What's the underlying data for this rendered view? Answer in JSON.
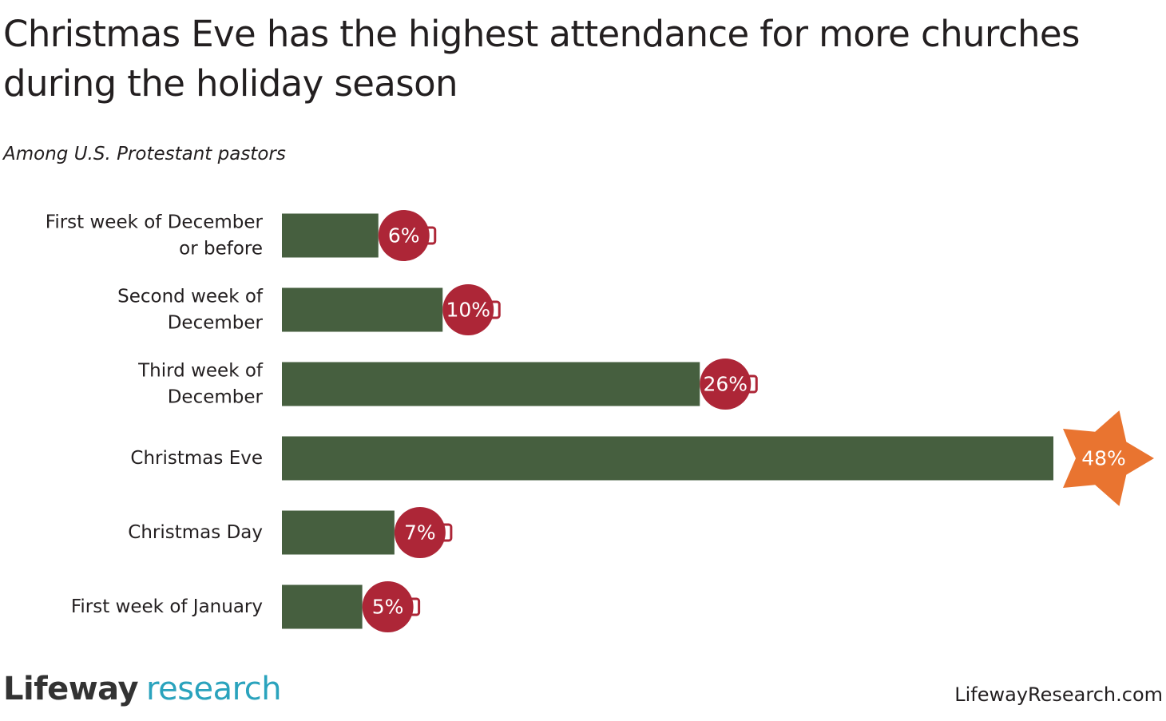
{
  "title": "Christmas Eve has the highest attendance for more churches during the holiday season",
  "subtitle": "Among U.S. Protestant pastors",
  "logo": {
    "main": "Lifeway",
    "sub": "research"
  },
  "footer_url": "LifewayResearch.com",
  "colors": {
    "bar": "#465f3f",
    "ornament": "#ad2637",
    "highlight_star": "#e97430",
    "text": "#231f20"
  },
  "chart_data": {
    "type": "bar",
    "orientation": "horizontal",
    "categories": [
      [
        "First week of December",
        "or before"
      ],
      [
        "Second week of",
        "December"
      ],
      [
        "Third week of",
        "December"
      ],
      [
        "Christmas Eve"
      ],
      [
        "Christmas Day"
      ],
      [
        "First week of January"
      ]
    ],
    "values": [
      6,
      10,
      26,
      48,
      7,
      5
    ],
    "value_labels": [
      "6%",
      "10%",
      "26%",
      "48%",
      "7%",
      "5%"
    ],
    "highlight_index": 3,
    "unit": "%",
    "xlim": [
      0,
      48
    ],
    "grid": false,
    "legend": "none"
  }
}
